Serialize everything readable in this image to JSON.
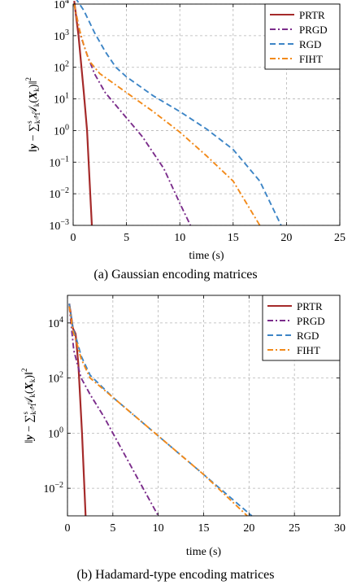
{
  "chart_data": [
    {
      "type": "line",
      "caption": "(a) Gaussian encoding matrices",
      "xlabel": "time (s)",
      "ylabel": "‖y − ∑_{k=1}^{s} A_k(X_k)‖²",
      "ylabel_parts": {
        "norm_open": "‖",
        "y": "y",
        "minus": " − ∑",
        "sub": "k=1",
        "sup": "s",
        "A": "𝒜",
        "A_sub": "k",
        "paren_open": "(",
        "X": "X",
        "X_sub": "k",
        "paren_close": ")‖",
        "power": "2"
      },
      "yscale": "log",
      "xlim": [
        0,
        25
      ],
      "ylim_exp": [
        -3,
        4
      ],
      "xticks": [
        0,
        5,
        10,
        15,
        20,
        25
      ],
      "yticks_exp": [
        4,
        3,
        2,
        1,
        0,
        -1,
        -2,
        -3
      ],
      "grid": true,
      "legend_position": "top-right",
      "series": [
        {
          "name": "PRTR",
          "color": "#a52a2a",
          "dash": "solid",
          "points": [
            [
              0.1,
              4.1
            ],
            [
              0.5,
              3.0
            ],
            [
              1.0,
              1.2
            ],
            [
              1.3,
              0.0
            ],
            [
              1.6,
              -2.0
            ],
            [
              1.75,
              -3.0
            ]
          ]
        },
        {
          "name": "PRGD",
          "color": "#7b2d8b",
          "dash": "dashdot",
          "points": [
            [
              0.1,
              4.0
            ],
            [
              0.7,
              3.0
            ],
            [
              1.3,
              2.4
            ],
            [
              2.0,
              1.8
            ],
            [
              3.0,
              1.2
            ],
            [
              4.5,
              0.6
            ],
            [
              6.5,
              -0.2
            ],
            [
              8.5,
              -1.2
            ],
            [
              10.0,
              -2.3
            ],
            [
              11.0,
              -3.0
            ]
          ]
        },
        {
          "name": "RGD",
          "color": "#3d85c6",
          "dash": "dashed",
          "points": [
            [
              0.2,
              4.2
            ],
            [
              1.0,
              3.8
            ],
            [
              2.0,
              3.1
            ],
            [
              3.0,
              2.5
            ],
            [
              4.0,
              2.0
            ],
            [
              5.0,
              1.7
            ],
            [
              7.5,
              1.1
            ],
            [
              10.0,
              0.6
            ],
            [
              12.5,
              0.05
            ],
            [
              15.0,
              -0.6
            ],
            [
              17.5,
              -1.6
            ],
            [
              19.5,
              -3.0
            ]
          ]
        },
        {
          "name": "FIHT",
          "color": "#f28a1a",
          "dash": "dashdot",
          "points": [
            [
              0.1,
              4.0
            ],
            [
              0.5,
              3.3
            ],
            [
              1.0,
              2.7
            ],
            [
              1.5,
              2.2
            ],
            [
              2.5,
              1.8
            ],
            [
              5.0,
              1.2
            ],
            [
              7.5,
              0.6
            ],
            [
              10.0,
              -0.05
            ],
            [
              12.5,
              -0.8
            ],
            [
              15.0,
              -1.6
            ],
            [
              17.5,
              -3.0
            ]
          ]
        }
      ]
    },
    {
      "type": "line",
      "caption": "(b) Hadamard-type encoding matrices",
      "xlabel": "time (s)",
      "ylabel": "‖y − ∑_{k=1}^{s} A_k(X_k)‖²",
      "yscale": "log",
      "xlim": [
        0,
        30
      ],
      "ylim_exp": [
        -3,
        5
      ],
      "xticks": [
        0,
        5,
        10,
        15,
        20,
        25,
        30
      ],
      "yticks_exp": [
        4,
        2,
        0,
        -2
      ],
      "grid": true,
      "legend_position": "top-right",
      "series": [
        {
          "name": "PRTR",
          "color": "#a52a2a",
          "dash": "solid",
          "points": [
            [
              0.2,
              4.7
            ],
            [
              0.6,
              3.8
            ],
            [
              0.9,
              3.6
            ],
            [
              1.2,
              2.5
            ],
            [
              1.6,
              0.0
            ],
            [
              2.0,
              -3.0
            ]
          ]
        },
        {
          "name": "PRGD",
          "color": "#7b2d8b",
          "dash": "dashdot",
          "points": [
            [
              0.2,
              4.6
            ],
            [
              0.7,
              3.0
            ],
            [
              1.5,
              2.0
            ],
            [
              2.5,
              1.4
            ],
            [
              4.0,
              0.6
            ],
            [
              6.0,
              -0.6
            ],
            [
              8.0,
              -1.8
            ],
            [
              10.0,
              -3.0
            ]
          ]
        },
        {
          "name": "RGD",
          "color": "#3d85c6",
          "dash": "dashed",
          "points": [
            [
              0.2,
              4.7
            ],
            [
              0.6,
              3.8
            ],
            [
              1.0,
              3.4
            ],
            [
              1.5,
              2.8
            ],
            [
              2.5,
              2.1
            ],
            [
              5.0,
              1.3
            ],
            [
              10.0,
              -0.1
            ],
            [
              15.0,
              -1.5
            ],
            [
              20.3,
              -3.0
            ]
          ]
        },
        {
          "name": "FIHT",
          "color": "#f28a1a",
          "dash": "dashdot",
          "points": [
            [
              0.2,
              4.6
            ],
            [
              0.6,
              3.7
            ],
            [
              1.0,
              3.3
            ],
            [
              1.5,
              2.7
            ],
            [
              2.5,
              2.0
            ],
            [
              5.0,
              1.3
            ],
            [
              10.0,
              -0.1
            ],
            [
              15.0,
              -1.5
            ],
            [
              19.8,
              -3.0
            ]
          ]
        }
      ]
    }
  ]
}
